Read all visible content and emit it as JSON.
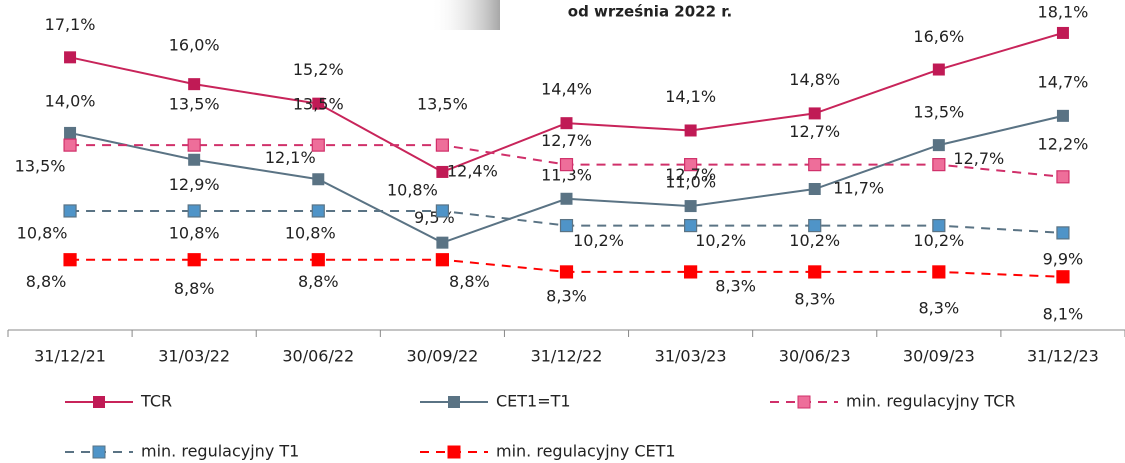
{
  "chart_data": {
    "type": "line",
    "annotation": "od września 2022 r.",
    "categories": [
      "31/12/21",
      "31/03/22",
      "30/06/22",
      "30/09/22",
      "31/12/22",
      "31/03/23",
      "30/06/23",
      "30/09/23",
      "31/12/23"
    ],
    "ylim": [
      6,
      19
    ],
    "series": [
      {
        "name": "TCR",
        "color": "#c8245a",
        "marker_color": "#c01a55",
        "dashed": false,
        "values": [
          17.1,
          16.0,
          15.2,
          12.4,
          14.4,
          14.1,
          14.8,
          16.6,
          18.1
        ],
        "value_labels": [
          "17,1%",
          "16,0%",
          "15,2%",
          "12,4%",
          "14,4%",
          "14,1%",
          "14,8%",
          "16,6%",
          "18,1%"
        ]
      },
      {
        "name": "CET1=T1",
        "color": "#5a7384",
        "marker_color": "#5a7384",
        "dashed": false,
        "values": [
          14.0,
          12.9,
          12.1,
          9.5,
          11.3,
          11.0,
          11.7,
          13.5,
          14.7
        ],
        "value_labels": [
          "14,0%",
          "12,9%",
          "12,1%",
          "9,5%",
          "11,3%",
          "11,0%",
          "11,7%",
          "13,5%",
          "14,7%"
        ]
      },
      {
        "name": "min. regulacyjny TCR",
        "color": "#d0306a",
        "marker_color": "#ee6e9a",
        "dashed": true,
        "values": [
          13.5,
          13.5,
          13.5,
          13.5,
          12.7,
          12.7,
          12.7,
          12.7,
          12.2
        ],
        "value_labels": [
          "13,5%",
          "13,5%",
          "13,5%",
          "13,5%",
          "12,7%",
          "12,7%",
          "12,7%",
          "12,7%",
          "12,2%"
        ]
      },
      {
        "name": "min. regulacyjny T1",
        "color": "#5a7384",
        "marker_color": "#4f94c8",
        "dashed": true,
        "values": [
          10.8,
          10.8,
          10.8,
          10.8,
          10.2,
          10.2,
          10.2,
          10.2,
          9.9
        ],
        "value_labels": [
          "10,8%",
          "10,8%",
          "10,8%",
          "10,8%",
          "10,2%",
          "10,2%",
          "10,2%",
          "10,2%",
          "9,9%"
        ]
      },
      {
        "name": "min. regulacyjny CET1",
        "color": "#ff0000",
        "marker_color": "#ff0000",
        "dashed": true,
        "values": [
          8.8,
          8.8,
          8.8,
          8.8,
          8.3,
          8.3,
          8.3,
          8.3,
          8.1
        ],
        "value_labels": [
          "8,8%",
          "8,8%",
          "8,8%",
          "8,8%",
          "8,3%",
          "8,3%",
          "8,3%",
          "8,3%",
          "8,1%"
        ]
      }
    ]
  }
}
